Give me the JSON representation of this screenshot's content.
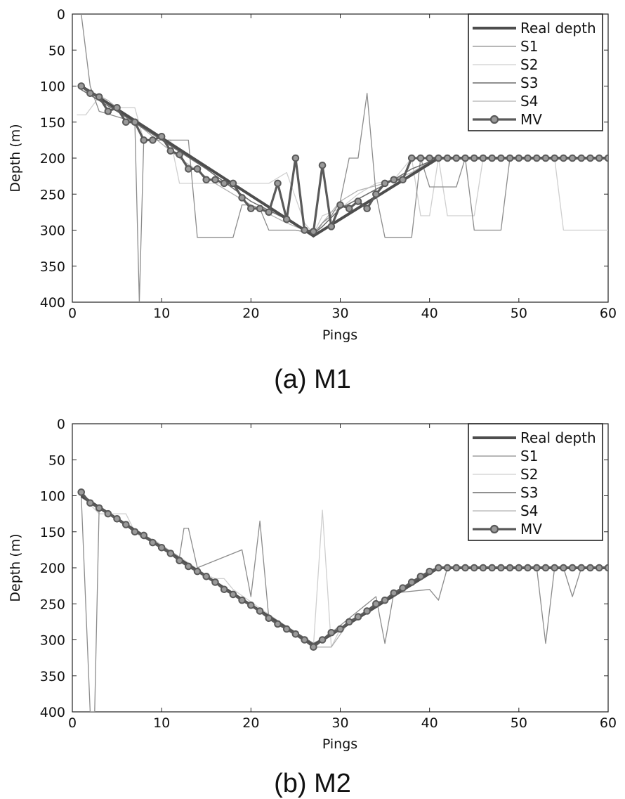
{
  "chart_data": [
    {
      "type": "line",
      "caption": "(a) M1",
      "xlabel": "Pings",
      "ylabel": "Depth (m)",
      "xlim": [
        0,
        60
      ],
      "ylim": [
        0,
        400
      ],
      "y_reversed": true,
      "xticks": [
        0,
        10,
        20,
        30,
        40,
        50,
        60
      ],
      "yticks": [
        0,
        50,
        100,
        150,
        200,
        250,
        300,
        350,
        400
      ],
      "grid": false,
      "legend_position": "top-right",
      "series": [
        {
          "name": "Real depth",
          "color": "#4d4d4d",
          "x": [
            1,
            27,
            41,
            60
          ],
          "y": [
            100,
            308,
            200,
            200
          ]
        },
        {
          "name": "S1",
          "color": "#8c8c8c",
          "x": [
            1,
            2,
            3,
            7,
            7.5,
            8,
            11,
            13,
            14,
            18,
            19,
            20,
            21,
            22,
            25,
            27,
            28,
            29,
            30,
            31,
            32,
            33,
            34,
            35,
            36,
            37,
            38,
            39,
            40,
            41,
            42,
            43,
            44,
            45,
            46,
            47,
            48,
            49,
            60
          ],
          "y": [
            0,
            100,
            135,
            150,
            400,
            175,
            175,
            175,
            310,
            310,
            265,
            265,
            270,
            300,
            300,
            305,
            290,
            280,
            260,
            200,
            200,
            110,
            250,
            310,
            310,
            310,
            310,
            200,
            240,
            240,
            240,
            240,
            200,
            300,
            300,
            300,
            300,
            200,
            200
          ]
        },
        {
          "name": "S2",
          "color": "#cfcfcf",
          "x": [
            0.5,
            1.5,
            3,
            5,
            7,
            8,
            10,
            11,
            12,
            16,
            22,
            24,
            26,
            27,
            28,
            30,
            32,
            34,
            36,
            38,
            39,
            40,
            41,
            42,
            43,
            44,
            45,
            46,
            47,
            48,
            49,
            50,
            51,
            52,
            53,
            54,
            55,
            60
          ],
          "y": [
            140,
            140,
            115,
            130,
            130,
            175,
            175,
            175,
            235,
            235,
            235,
            220,
            290,
            305,
            280,
            270,
            250,
            235,
            230,
            200,
            280,
            280,
            200,
            280,
            280,
            280,
            280,
            200,
            200,
            200,
            200,
            200,
            200,
            200,
            200,
            200,
            300,
            300
          ]
        },
        {
          "name": "S3",
          "color": "#6b6b6b",
          "x": [
            1,
            5,
            10,
            15,
            20,
            24,
            26,
            27,
            28,
            30,
            33,
            36,
            38,
            41,
            60
          ],
          "y": [
            105,
            135,
            175,
            215,
            260,
            285,
            298,
            305,
            295,
            270,
            250,
            230,
            215,
            200,
            200
          ]
        },
        {
          "name": "S4",
          "color": "#b0b0b0",
          "x": [
            1,
            4,
            8,
            12,
            16,
            20,
            24,
            26,
            27,
            28,
            30,
            32,
            35,
            38,
            40,
            41,
            60
          ],
          "y": [
            100,
            120,
            160,
            200,
            235,
            265,
            290,
            300,
            310,
            290,
            260,
            245,
            235,
            220,
            205,
            200,
            200
          ]
        },
        {
          "name": "MV",
          "color": "#5a5a5a",
          "marker": "circle",
          "x": [
            1,
            2,
            3,
            4,
            5,
            6,
            7,
            8,
            9,
            10,
            11,
            12,
            13,
            14,
            15,
            16,
            17,
            18,
            19,
            20,
            21,
            22,
            23,
            24,
            25,
            26,
            27,
            28,
            29,
            30,
            31,
            32,
            33,
            34,
            35,
            36,
            37,
            38,
            39,
            40,
            41,
            42,
            43,
            44,
            45,
            46,
            47,
            48,
            49,
            50,
            51,
            52,
            53,
            54,
            55,
            56,
            57,
            58,
            59,
            60
          ],
          "y": [
            100,
            110,
            115,
            135,
            130,
            150,
            150,
            175,
            175,
            170,
            190,
            195,
            215,
            215,
            230,
            230,
            235,
            235,
            255,
            270,
            270,
            275,
            235,
            285,
            200,
            300,
            302,
            210,
            295,
            265,
            270,
            260,
            270,
            250,
            235,
            230,
            230,
            200,
            200,
            200,
            200,
            200,
            200,
            200,
            200,
            200,
            200,
            200,
            200,
            200,
            200,
            200,
            200,
            200,
            200,
            200,
            200,
            200,
            200,
            200
          ]
        }
      ]
    },
    {
      "type": "line",
      "caption": "(b) M2",
      "xlabel": "Pings",
      "ylabel": "Depth (m)",
      "xlim": [
        0,
        60
      ],
      "ylim": [
        0,
        400
      ],
      "y_reversed": true,
      "xticks": [
        0,
        10,
        20,
        30,
        40,
        50,
        60
      ],
      "yticks": [
        0,
        50,
        100,
        150,
        200,
        250,
        300,
        350,
        400
      ],
      "grid": false,
      "legend_position": "top-right",
      "series": [
        {
          "name": "Real depth",
          "color": "#4d4d4d",
          "x": [
            1,
            27,
            41,
            60
          ],
          "y": [
            100,
            308,
            200,
            200
          ]
        },
        {
          "name": "S1",
          "color": "#8c8c8c",
          "x": [
            1,
            2,
            2.5,
            3,
            12,
            12.5,
            13,
            14,
            19,
            20,
            21,
            22,
            27,
            34,
            35,
            36,
            40,
            41,
            42,
            52,
            53,
            54,
            55,
            56,
            57,
            60
          ],
          "y": [
            100,
            400,
            400,
            115,
            185,
            145,
            145,
            200,
            175,
            240,
            135,
            270,
            310,
            240,
            305,
            235,
            230,
            245,
            200,
            200,
            305,
            200,
            200,
            240,
            200,
            200
          ]
        },
        {
          "name": "S2",
          "color": "#cfcfcf",
          "x": [
            1,
            3,
            6,
            7,
            8,
            9,
            15,
            16,
            17,
            18,
            27,
            28,
            29,
            30,
            41,
            60
          ],
          "y": [
            100,
            125,
            125,
            150,
            160,
            160,
            210,
            215,
            215,
            230,
            308,
            120,
            310,
            285,
            200,
            200
          ]
        },
        {
          "name": "S3",
          "color": "#6b6b6b",
          "x": [
            1,
            27,
            30,
            41,
            60
          ],
          "y": [
            102,
            305,
            285,
            200,
            200
          ]
        },
        {
          "name": "S4",
          "color": "#b0b0b0",
          "x": [
            1,
            26,
            27,
            29,
            31,
            41,
            60
          ],
          "y": [
            100,
            300,
            310,
            310,
            275,
            200,
            200
          ]
        },
        {
          "name": "MV",
          "color": "#5a5a5a",
          "marker": "circle",
          "x": [
            1,
            2,
            3,
            4,
            5,
            6,
            7,
            8,
            9,
            10,
            11,
            12,
            13,
            14,
            15,
            16,
            17,
            18,
            19,
            20,
            21,
            22,
            23,
            24,
            25,
            26,
            27,
            28,
            29,
            30,
            31,
            32,
            33,
            34,
            35,
            36,
            37,
            38,
            39,
            40,
            41,
            42,
            43,
            44,
            45,
            46,
            47,
            48,
            49,
            50,
            51,
            52,
            53,
            54,
            55,
            56,
            57,
            58,
            59,
            60
          ],
          "y": [
            95,
            110,
            117,
            125,
            132,
            140,
            150,
            155,
            165,
            172,
            180,
            190,
            198,
            205,
            212,
            220,
            230,
            237,
            245,
            252,
            260,
            270,
            278,
            285,
            292,
            300,
            310,
            300,
            290,
            285,
            275,
            268,
            260,
            250,
            245,
            235,
            228,
            220,
            212,
            205,
            200,
            200,
            200,
            200,
            200,
            200,
            200,
            200,
            200,
            200,
            200,
            200,
            200,
            200,
            200,
            200,
            200,
            200,
            200,
            200
          ]
        }
      ]
    }
  ]
}
